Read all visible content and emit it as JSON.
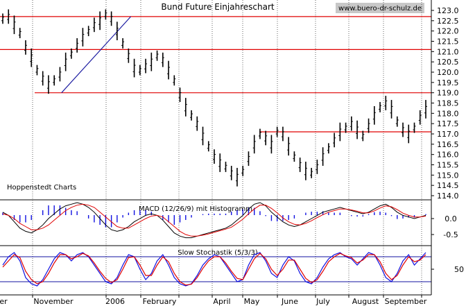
{
  "chart_data": [
    {
      "type": "line",
      "title": "Bund Future Einjahreschart",
      "watermark": "www.buero-dr-schulz.de",
      "footer_label": "Hoppenstedt Charts",
      "price_axis": {
        "ticks": [
          "123.0",
          "122.5",
          "122.0",
          "121.5",
          "121.0",
          "120.5",
          "120.0",
          "119.5",
          "119.0",
          "118.5",
          "118.0",
          "117.5",
          "117.0",
          "116.5",
          "116.0",
          "115.5",
          "115.0",
          "114.5",
          "114.0"
        ],
        "min": 114.0,
        "max": 123.0
      },
      "x_axis": {
        "labels": [
          "er",
          "November",
          "2006",
          "February",
          "April",
          "May",
          "June",
          "July",
          "August",
          "September"
        ]
      },
      "price_series": [
        122.6,
        122.7,
        122.3,
        121.9,
        121.2,
        120.7,
        120.1,
        119.7,
        119.4,
        119.6,
        119.9,
        120.5,
        120.9,
        121.3,
        121.7,
        122.0,
        122.3,
        122.5,
        122.8,
        122.6,
        122.0,
        121.4,
        120.8,
        120.2,
        120.1,
        120.3,
        120.5,
        120.8,
        120.6,
        120.1,
        119.6,
        118.9,
        118.3,
        117.9,
        117.5,
        116.9,
        116.4,
        115.9,
        115.6,
        115.4,
        115.1,
        114.9,
        115.2,
        115.8,
        116.5,
        117.0,
        116.8,
        116.5,
        117.1,
        117.0,
        116.4,
        115.9,
        115.5,
        115.2,
        115.1,
        115.4,
        115.9,
        116.3,
        116.7,
        117.1,
        117.3,
        117.5,
        117.2,
        116.9,
        117.4,
        117.9,
        118.3,
        118.5,
        118.2,
        117.6,
        117.2,
        117.0,
        117.3,
        117.8,
        118.2
      ],
      "horizontal_lines": [
        122.7,
        121.1,
        119.0,
        117.1
      ],
      "trendline": {
        "from": [
          3,
          119.0
        ],
        "to": [
          19,
          122.7
        ]
      }
    },
    {
      "type": "line",
      "title": "MACD (12/26/9) mit Histogramm",
      "y_ticks": [
        "0.0",
        "-0.5"
      ],
      "macd_series": [
        0.2,
        0.1,
        -0.1,
        -0.3,
        -0.4,
        -0.45,
        -0.35,
        -0.2,
        0.0,
        0.15,
        0.3,
        0.4,
        0.45,
        0.5,
        0.45,
        0.35,
        0.2,
        0.0,
        -0.2,
        -0.35,
        -0.4,
        -0.35,
        -0.25,
        -0.1,
        0.0,
        0.1,
        0.15,
        0.1,
        -0.05,
        -0.25,
        -0.45,
        -0.55,
        -0.6,
        -0.6,
        -0.55,
        -0.5,
        -0.45,
        -0.4,
        -0.35,
        -0.3,
        -0.2,
        -0.05,
        0.1,
        0.3,
        0.45,
        0.5,
        0.4,
        0.2,
        0.05,
        -0.1,
        -0.2,
        -0.25,
        -0.2,
        -0.1,
        0.0,
        0.1,
        0.2,
        0.25,
        0.3,
        0.35,
        0.3,
        0.25,
        0.2,
        0.15,
        0.2,
        0.3,
        0.4,
        0.45,
        0.35,
        0.2,
        0.1,
        0.05,
        0.0,
        0.05,
        0.1
      ],
      "signal_series": [
        0.15,
        0.1,
        0.0,
        -0.15,
        -0.25,
        -0.35,
        -0.35,
        -0.3,
        -0.2,
        -0.05,
        0.1,
        0.25,
        0.35,
        0.42,
        0.45,
        0.42,
        0.35,
        0.2,
        0.05,
        -0.1,
        -0.25,
        -0.3,
        -0.3,
        -0.2,
        -0.1,
        0.0,
        0.08,
        0.1,
        0.05,
        -0.1,
        -0.25,
        -0.4,
        -0.5,
        -0.55,
        -0.55,
        -0.52,
        -0.48,
        -0.43,
        -0.38,
        -0.33,
        -0.27,
        -0.15,
        -0.02,
        0.15,
        0.3,
        0.42,
        0.42,
        0.32,
        0.18,
        0.02,
        -0.1,
        -0.18,
        -0.2,
        -0.15,
        -0.07,
        0.03,
        0.12,
        0.2,
        0.25,
        0.3,
        0.3,
        0.27,
        0.23,
        0.18,
        0.18,
        0.24,
        0.33,
        0.4,
        0.37,
        0.28,
        0.17,
        0.1,
        0.05,
        0.05,
        0.08
      ]
    },
    {
      "type": "line",
      "title": "Slow Stochastik (5/3/3)",
      "y_ticks": [
        "50"
      ],
      "k_series": [
        60,
        80,
        90,
        70,
        30,
        15,
        10,
        25,
        50,
        75,
        90,
        85,
        70,
        85,
        90,
        80,
        60,
        40,
        20,
        15,
        30,
        60,
        85,
        80,
        50,
        25,
        40,
        70,
        85,
        60,
        30,
        15,
        10,
        15,
        35,
        60,
        75,
        85,
        80,
        60,
        40,
        20,
        25,
        60,
        85,
        90,
        70,
        40,
        30,
        60,
        80,
        70,
        40,
        20,
        15,
        30,
        55,
        75,
        85,
        90,
        80,
        75,
        60,
        75,
        90,
        85,
        60,
        30,
        20,
        40,
        70,
        85,
        60,
        75,
        90
      ],
      "d_series": [
        55,
        70,
        85,
        78,
        45,
        25,
        15,
        20,
        40,
        65,
        85,
        85,
        75,
        80,
        88,
        82,
        65,
        45,
        28,
        18,
        25,
        50,
        78,
        80,
        60,
        35,
        35,
        60,
        80,
        68,
        40,
        20,
        12,
        14,
        30,
        52,
        70,
        80,
        80,
        65,
        45,
        28,
        25,
        50,
        75,
        88,
        75,
        50,
        35,
        50,
        72,
        72,
        50,
        28,
        18,
        25,
        45,
        68,
        80,
        88,
        82,
        78,
        65,
        72,
        85,
        85,
        68,
        40,
        25,
        35,
        60,
        80,
        68,
        72,
        85
      ],
      "reference_lines": [
        80,
        20
      ]
    }
  ],
  "colors": {
    "price": "#000000",
    "horizontal_line": "#e00000",
    "trendline": "#1a1aa0",
    "macd_line": "#000000",
    "signal_line": "#e00000",
    "histogram": "#1010e0",
    "stoch_k": "#1010e0",
    "stoch_d": "#e00000",
    "stoch_ref": "#1010a0",
    "watermark_bg": "#c8c8c8"
  }
}
